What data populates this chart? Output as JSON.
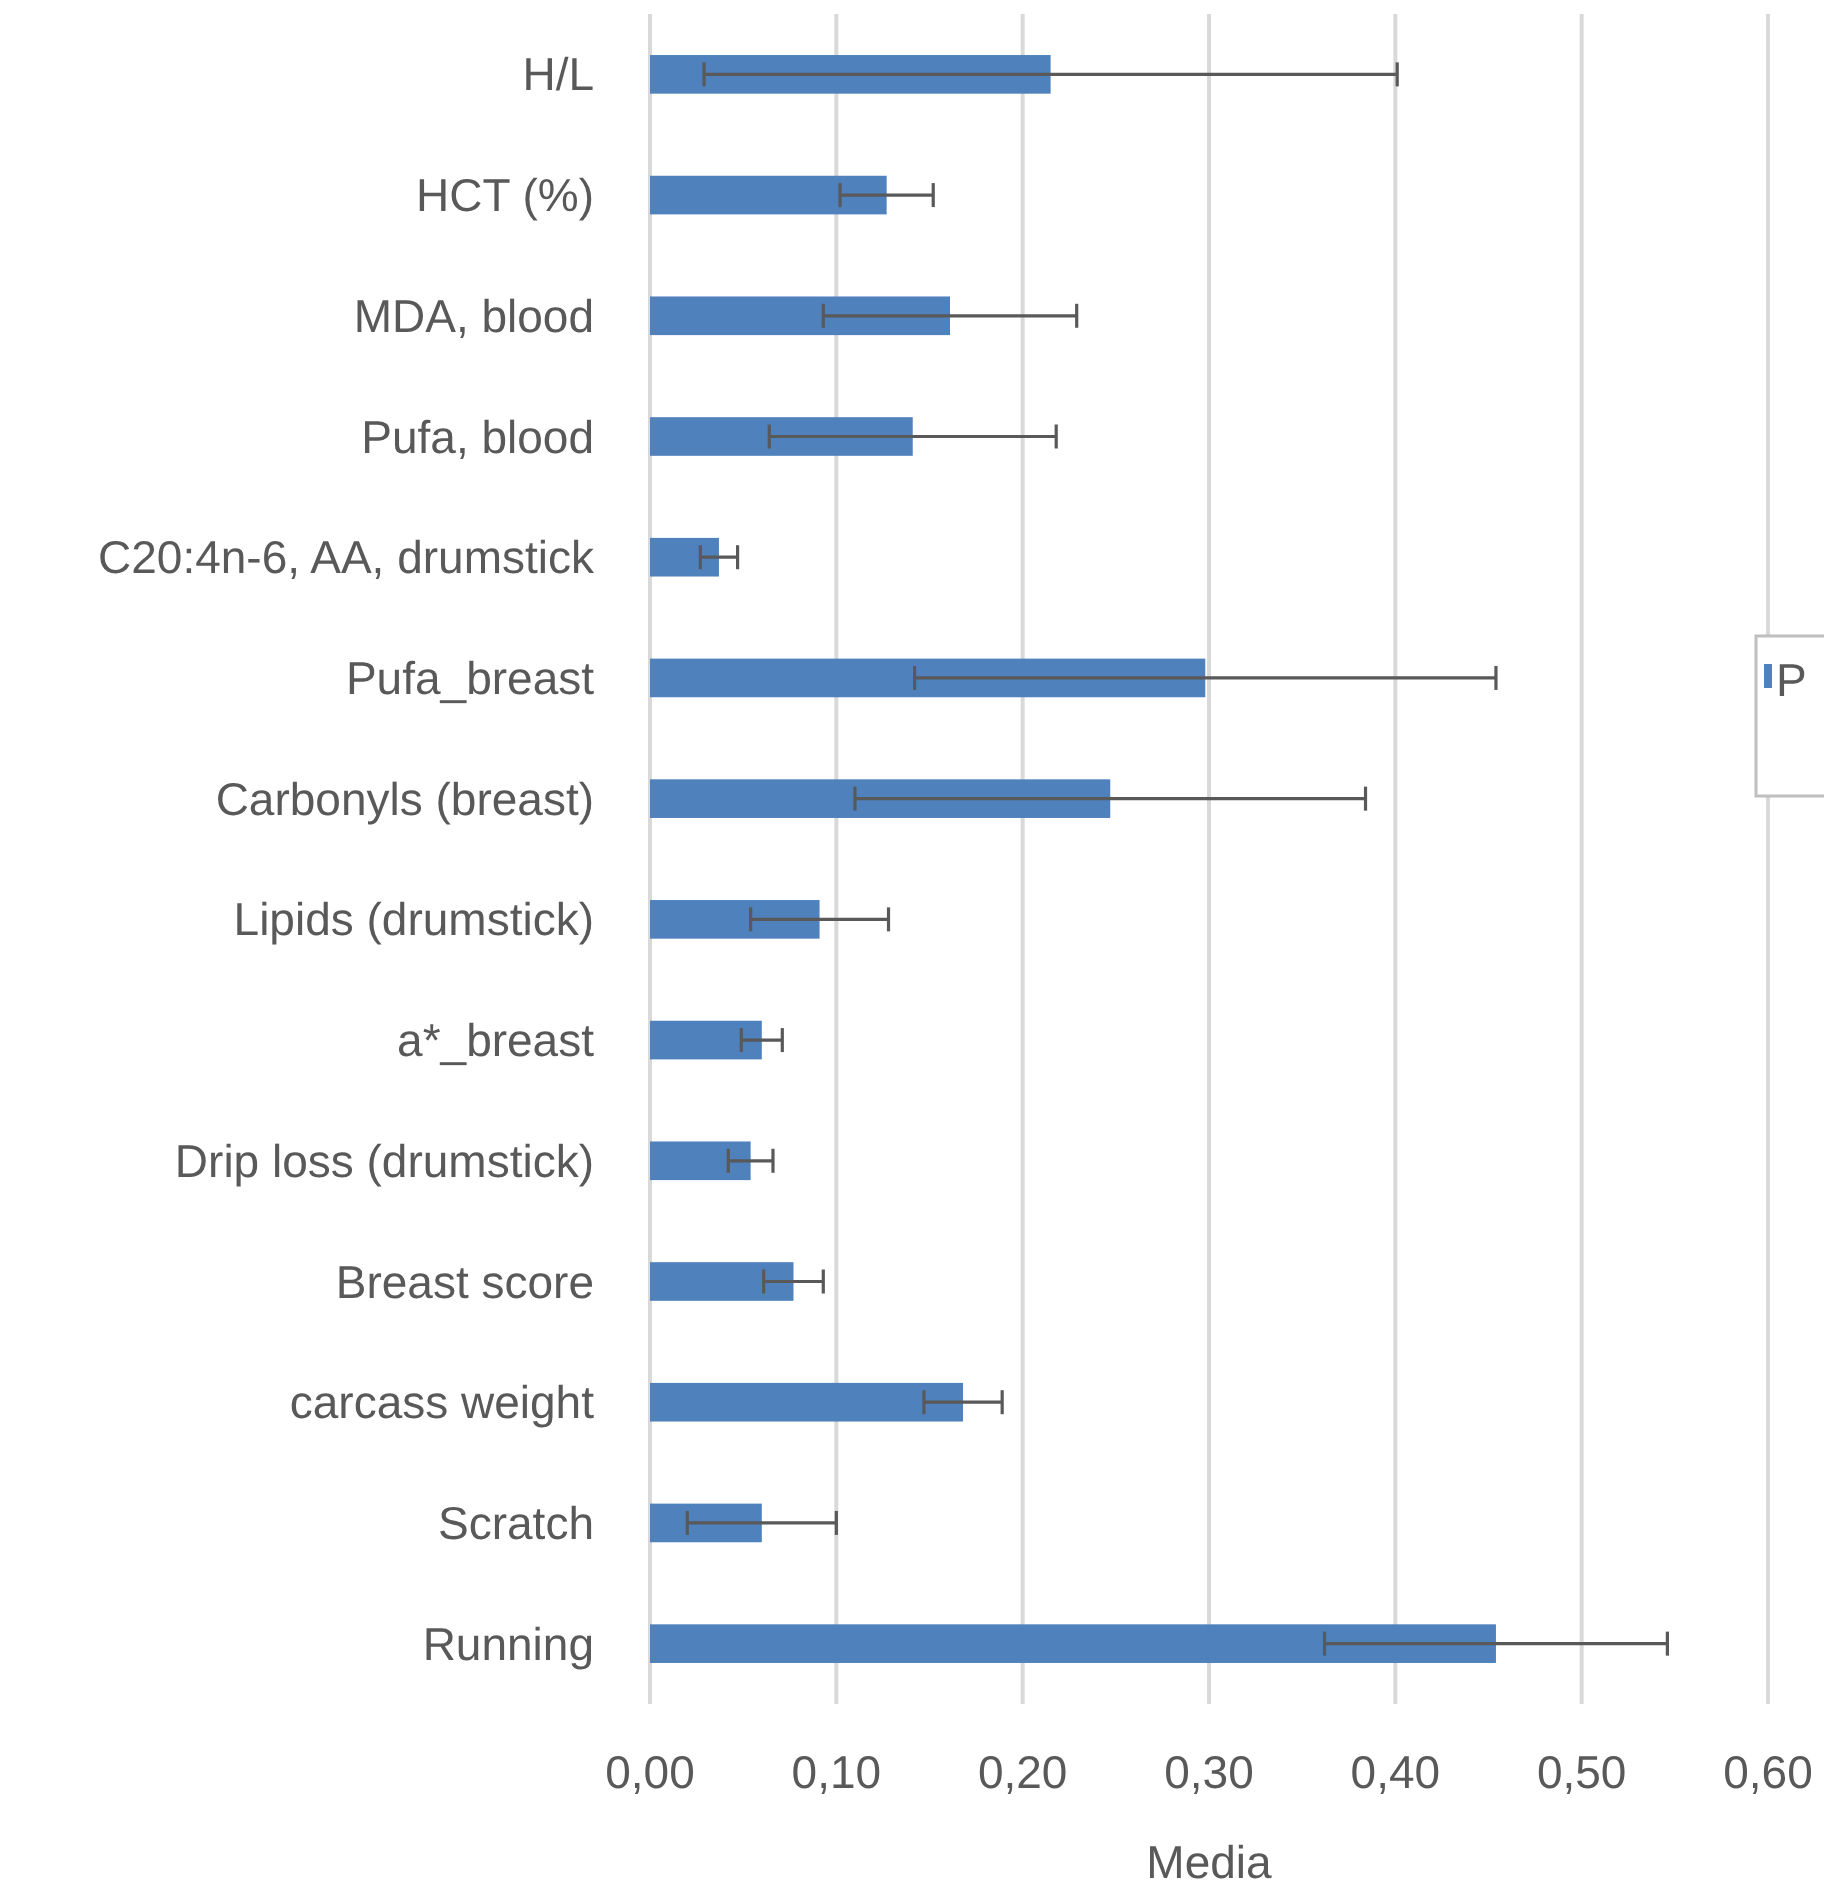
{
  "chart_data": {
    "type": "bar",
    "orientation": "horizontal",
    "xlabel": "Media",
    "categories": [
      "H/L",
      "HCT (%)",
      "MDA, blood",
      "Pufa, blood",
      "C20:4n-6, AA, drumstick",
      "Pufa_breast",
      "Carbonyls (breast)",
      "Lipids (drumstick)",
      "a*_breast",
      "Drip loss (drumstick)",
      "Breast score",
      "carcass weight",
      "Scratch",
      "Running"
    ],
    "series": [
      {
        "name": "P",
        "color": "#4f81bd",
        "values": [
          0.215,
          0.127,
          0.161,
          0.141,
          0.037,
          0.298,
          0.247,
          0.091,
          0.06,
          0.054,
          0.077,
          0.168,
          0.06,
          0.454
        ],
        "errors": [
          0.186,
          0.025,
          0.068,
          0.077,
          0.01,
          0.156,
          0.137,
          0.037,
          0.011,
          0.012,
          0.016,
          0.021,
          0.04,
          0.092
        ]
      }
    ],
    "xlim": [
      0,
      0.6
    ],
    "xticks": [
      {
        "value": 0,
        "label": "0,00"
      },
      {
        "value": 0.1,
        "label": "0,10"
      },
      {
        "value": 0.2,
        "label": "0,20"
      },
      {
        "value": 0.3,
        "label": "0,30"
      },
      {
        "value": 0.4,
        "label": "0,40"
      },
      {
        "value": 0.5,
        "label": "0,50"
      },
      {
        "value": 0.6,
        "label": "0,60"
      }
    ],
    "grid": "x",
    "legend": "right"
  }
}
